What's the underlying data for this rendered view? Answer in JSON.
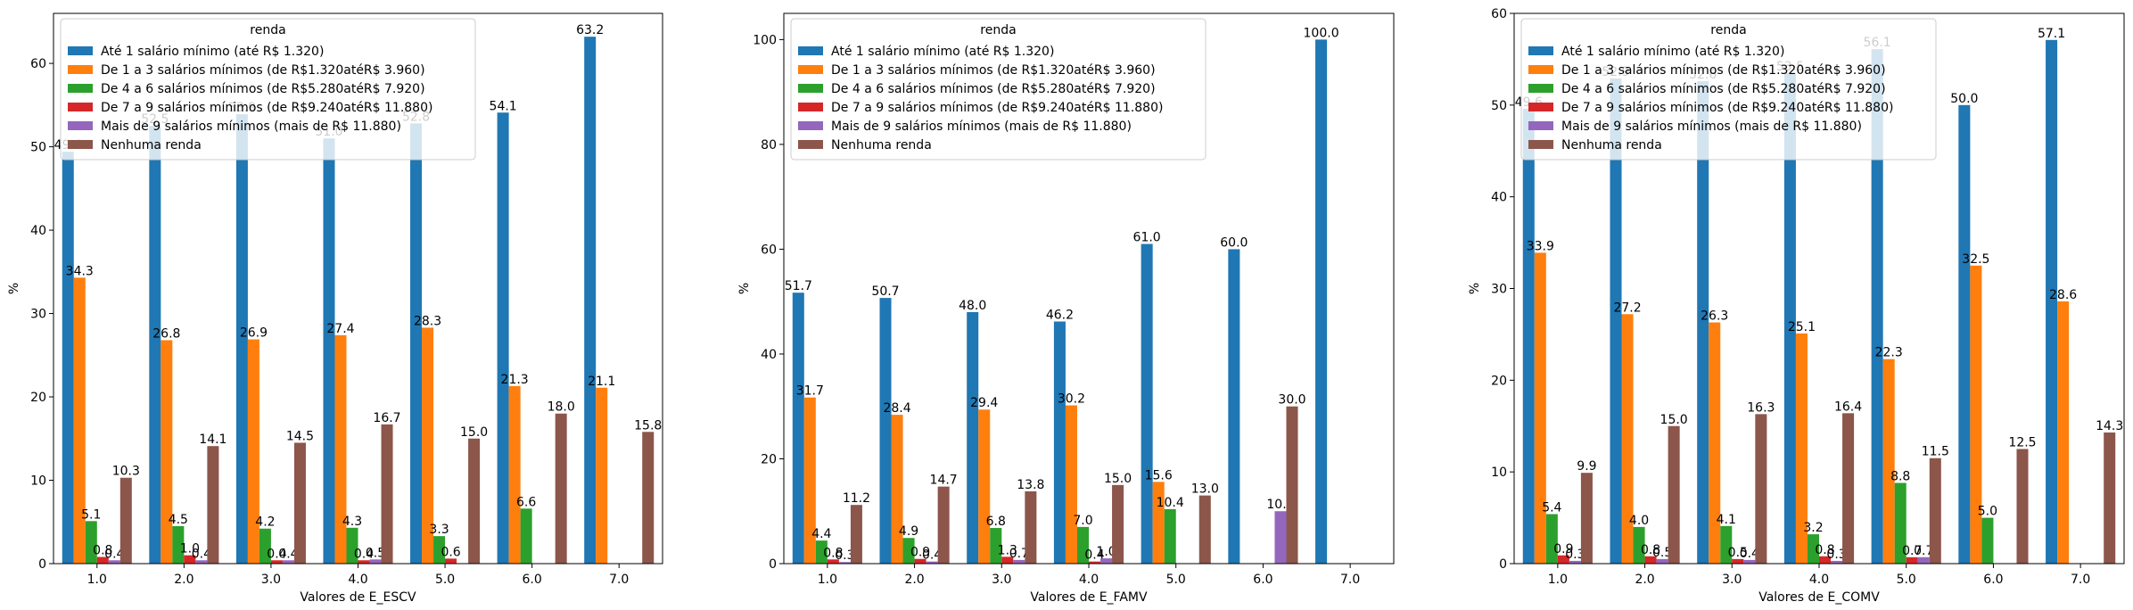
{
  "chart_data": [
    {
      "type": "bar",
      "xlabel": "Valores de E_ESCV",
      "ylabel": "%",
      "ylim": [
        0,
        66
      ],
      "yticks": [
        "0",
        "10",
        "20",
        "30",
        "40",
        "50",
        "60"
      ],
      "categories": [
        "1.0",
        "2.0",
        "3.0",
        "4.0",
        "5.0",
        "6.0",
        "7.0"
      ],
      "legend_title": "renda",
      "series": [
        {
          "name": "Até 1 salário mínimo (até R$ 1.320)",
          "values": [
            49.4,
            52.5,
            53.9,
            51.0,
            52.8,
            54.1,
            63.2
          ],
          "labels": [
            "49.4",
            "52.5",
            "53.9",
            "51.0",
            "52.8",
            "54.1",
            "63.2"
          ]
        },
        {
          "name": "De 1 a 3 salários mínimos (de R$ 1.320 até R$ 3.960)",
          "values": [
            34.3,
            26.8,
            26.9,
            27.4,
            28.3,
            21.3,
            21.1
          ],
          "labels": [
            "34.3",
            "26.8",
            "26.9",
            "27.4",
            "28.3",
            "21.3",
            "21.1"
          ]
        },
        {
          "name": "De 4 a 6 salários mínimos (de R$ 5.280 até R$ 7.920)",
          "values": [
            5.1,
            4.5,
            4.2,
            4.3,
            3.3,
            6.6,
            null
          ],
          "labels": [
            "5.1",
            "4.5",
            "4.2",
            "4.3",
            "3.3",
            "6.6",
            ""
          ]
        },
        {
          "name": "De 7 a 9 salários mínimos (de R$ 9.240 até R$ 11.880)",
          "values": [
            0.8,
            1.0,
            0.4,
            0.4,
            0.6,
            null,
            null
          ],
          "labels": [
            "0.8",
            "1.0",
            "0.4",
            "0.4",
            "0.6",
            "",
            ""
          ]
        },
        {
          "name": "Mais de 9 salários mínimos (mais de R$ 11.880)",
          "values": [
            0.4,
            0.4,
            0.4,
            0.5,
            null,
            null,
            null
          ],
          "labels": [
            "0.4",
            "0.4",
            "0.4",
            "0.5",
            "",
            "",
            ""
          ]
        },
        {
          "name": "Nenhuma renda",
          "values": [
            10.3,
            14.1,
            14.5,
            16.7,
            15.0,
            18.0,
            15.8
          ],
          "labels": [
            "10.3",
            "14.1",
            "14.5",
            "16.7",
            "15.0",
            "18.0",
            "15.8"
          ]
        }
      ]
    },
    {
      "type": "bar",
      "xlabel": "Valores de E_FAMV",
      "ylabel": "%",
      "ylim": [
        0,
        105
      ],
      "yticks": [
        "0",
        "20",
        "40",
        "60",
        "80",
        "100"
      ],
      "categories": [
        "1.0",
        "2.0",
        "3.0",
        "4.0",
        "5.0",
        "6.0",
        "7.0"
      ],
      "legend_title": "renda",
      "series": [
        {
          "name": "Até 1 salário mínimo (até R$ 1.320)",
          "values": [
            51.7,
            50.7,
            48.0,
            46.2,
            61.0,
            60.0,
            100.0
          ],
          "labels": [
            "51.7",
            "50.7",
            "48.0",
            "46.2",
            "61.0",
            "60.0",
            "100.0"
          ]
        },
        {
          "name": "De 1 a 3 salários mínimos (de R$ 1.320 até R$ 3.960)",
          "values": [
            31.7,
            28.4,
            29.4,
            30.2,
            15.6,
            null,
            null
          ],
          "labels": [
            "31.7",
            "28.4",
            "29.4",
            "30.2",
            "15.6",
            "",
            ""
          ]
        },
        {
          "name": "De 4 a 6 salários mínimos (de R$ 5.280 até R$ 7.920)",
          "values": [
            4.4,
            4.9,
            6.8,
            7.0,
            10.4,
            null,
            null
          ],
          "labels": [
            "4.4",
            "4.9",
            "6.8",
            "7.0",
            "10.4",
            "",
            ""
          ]
        },
        {
          "name": "De 7 a 9 salários mínimos (de R$ 9.240 até R$ 11.880)",
          "values": [
            0.8,
            0.9,
            1.3,
            0.4,
            null,
            null,
            null
          ],
          "labels": [
            "0.8",
            "0.9",
            "1.3",
            "0.4",
            "",
            "",
            ""
          ]
        },
        {
          "name": "Mais de 9 salários mínimos (mais de R$ 11.880)",
          "values": [
            0.3,
            0.4,
            0.7,
            1.0,
            null,
            10.0,
            null
          ],
          "labels": [
            "0.3",
            "0.4",
            "0.7",
            "1.0",
            "",
            "10.0",
            ""
          ]
        },
        {
          "name": "Nenhuma renda",
          "values": [
            11.2,
            14.7,
            13.8,
            15.0,
            13.0,
            30.0,
            null
          ],
          "labels": [
            "11.2",
            "14.7",
            "13.8",
            "15.0",
            "13.0",
            "30.0",
            ""
          ]
        }
      ]
    },
    {
      "type": "bar",
      "xlabel": "Valores de E_COMV",
      "ylabel": "%",
      "ylim": [
        0,
        60
      ],
      "yticks": [
        "0",
        "10",
        "20",
        "30",
        "40",
        "50",
        "60"
      ],
      "categories": [
        "1.0",
        "2.0",
        "3.0",
        "4.0",
        "5.0",
        "6.0",
        "7.0"
      ],
      "legend_title": "renda",
      "series": [
        {
          "name": "Até 1 salário mínimo (até R$ 1.320)",
          "values": [
            49.6,
            52.9,
            52.6,
            53.5,
            56.1,
            50.0,
            57.1
          ],
          "labels": [
            "49.6",
            "52.9",
            "52.6",
            "53.5",
            "56.1",
            "50.0",
            "57.1"
          ]
        },
        {
          "name": "De 1 a 3 salários mínimos (de R$ 1.320 até R$ 3.960)",
          "values": [
            33.9,
            27.2,
            26.3,
            25.1,
            22.3,
            32.5,
            28.6
          ],
          "labels": [
            "33.9",
            "27.2",
            "26.3",
            "25.1",
            "22.3",
            "32.5",
            "28.6"
          ]
        },
        {
          "name": "De 4 a 6 salários mínimos (de R$ 5.280 até R$ 7.920)",
          "values": [
            5.4,
            4.0,
            4.1,
            3.2,
            8.8,
            5.0,
            null
          ],
          "labels": [
            "5.4",
            "4.0",
            "4.1",
            "3.2",
            "8.8",
            "5.0",
            ""
          ]
        },
        {
          "name": "De 7 a 9 salários mínimos (de R$ 9.240 até R$ 11.880)",
          "values": [
            0.9,
            0.8,
            0.5,
            0.8,
            0.7,
            null,
            null
          ],
          "labels": [
            "0.9",
            "0.8",
            "0.5",
            "0.8",
            "0.7",
            "",
            ""
          ]
        },
        {
          "name": "Mais de 9 salários mínimos (mais de R$ 11.880)",
          "values": [
            0.3,
            0.5,
            0.4,
            0.3,
            0.7,
            null,
            null
          ],
          "labels": [
            "0.3",
            "0.5",
            "0.4",
            "0.3",
            "0.7",
            "",
            ""
          ]
        },
        {
          "name": "Nenhuma renda",
          "values": [
            9.9,
            15.0,
            16.3,
            16.4,
            11.5,
            12.5,
            14.3
          ],
          "labels": [
            "9.9",
            "15.0",
            "16.3",
            "16.4",
            "11.5",
            "12.5",
            "14.3"
          ]
        }
      ]
    }
  ],
  "legend": {
    "title": "renda",
    "entries": [
      "Até 1 salário mínimo (até R$ 1.320)",
      "De 1 a 3 salários mínimos (de R$1.320atéR$ 3.960)",
      "De 4 a 6 salários mínimos (de R$5.280atéR$ 7.920)",
      "De 7 a 9 salários mínimos (de R$9.240atéR$ 11.880)",
      "Mais de 9 salários mínimos (mais de R$ 11.880)",
      "Nenhuma renda"
    ]
  },
  "colors": [
    "#1f77b4",
    "#ff7f0e",
    "#2ca02c",
    "#d62728",
    "#9467bd",
    "#8c564b"
  ]
}
